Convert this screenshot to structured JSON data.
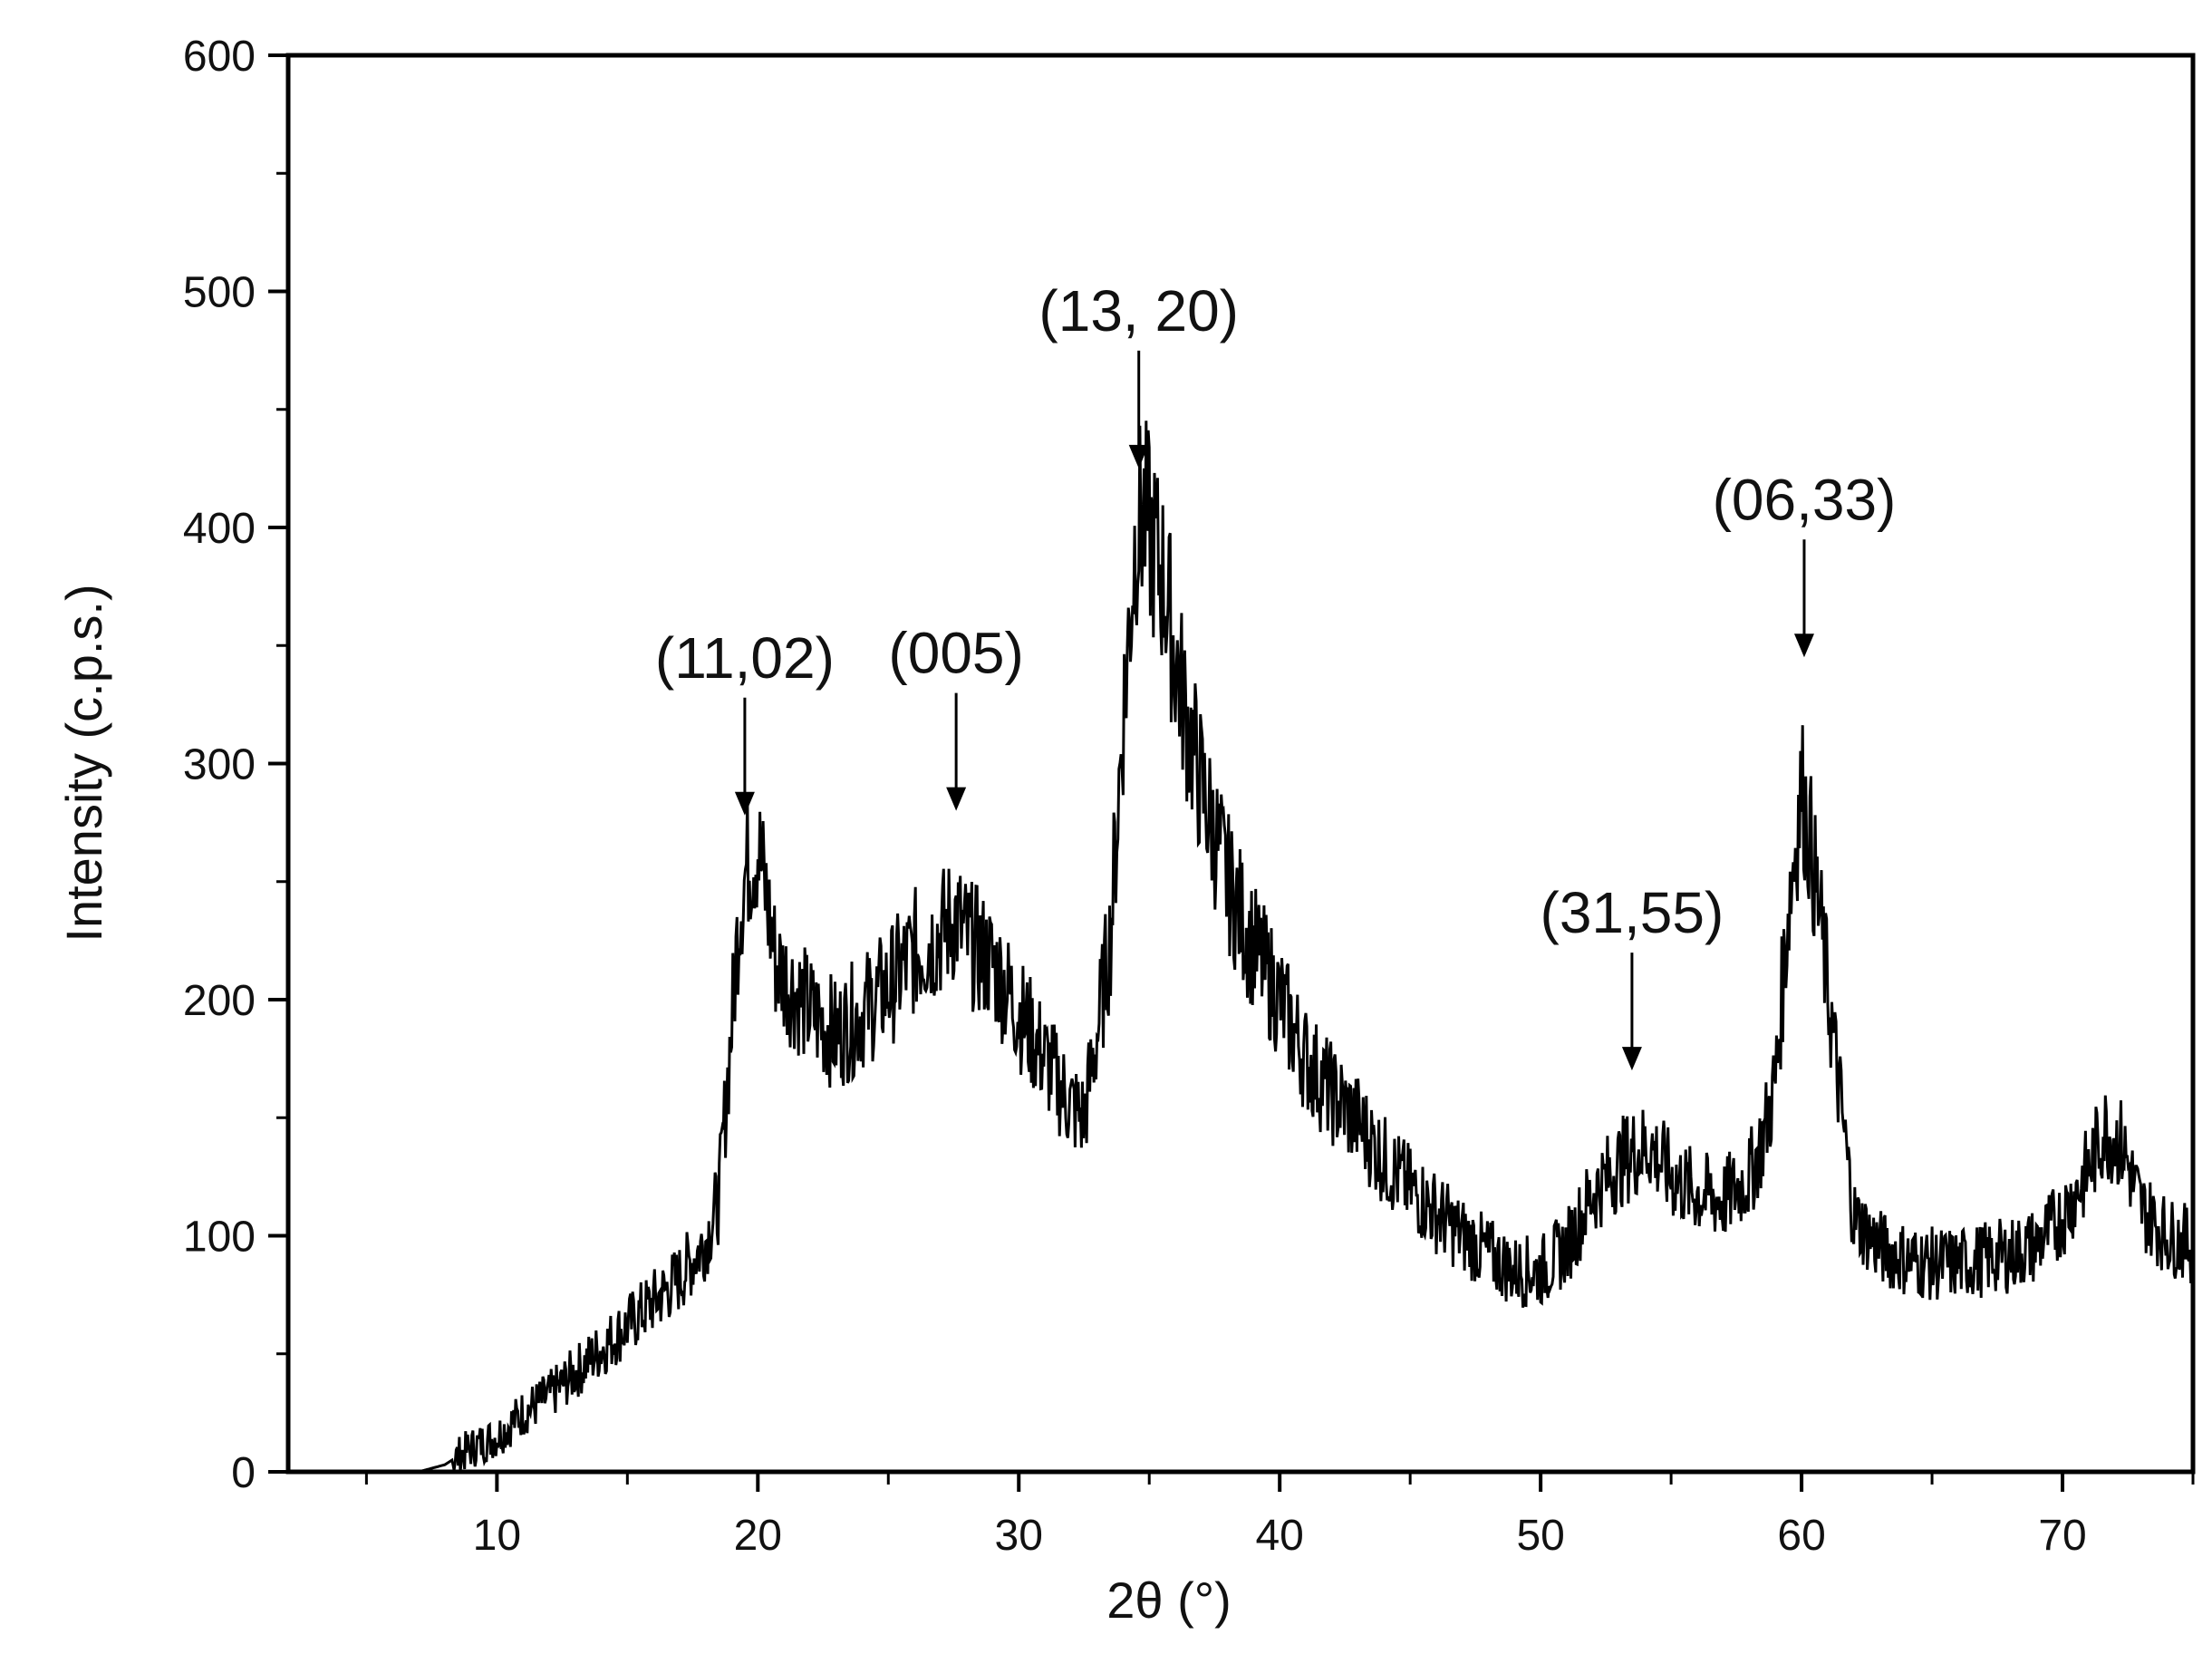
{
  "chart_data": {
    "type": "line",
    "title": "",
    "xlabel": "2θ (°)",
    "ylabel": "Intensity (c.p.s.)",
    "xlim": [
      2,
      75
    ],
    "ylim": [
      0,
      600
    ],
    "x_ticks": [
      10,
      20,
      30,
      40,
      50,
      60,
      70
    ],
    "y_ticks": [
      0,
      100,
      200,
      300,
      400,
      500,
      600
    ],
    "grid": false,
    "legend": "none",
    "line_color": "#000000",
    "series": [
      {
        "x": [
          5,
          7,
          8,
          9,
          10,
          11,
          12,
          13,
          14,
          15,
          16,
          17,
          18,
          18.5,
          19,
          19.3,
          19.6,
          19.8,
          20.0,
          20.3,
          20.7,
          21,
          22,
          23,
          24,
          25,
          26,
          27,
          27.6,
          28,
          29,
          30,
          31,
          32,
          32.5,
          33,
          33.5,
          34,
          34.5,
          34.8,
          35.2,
          35.6,
          36,
          36.5,
          37,
          38,
          39,
          40,
          41,
          42,
          43,
          44,
          45,
          46,
          47,
          48,
          49,
          50,
          51,
          52,
          53,
          53.5,
          54.2,
          55,
          56,
          57,
          58,
          58.5,
          59,
          59.5,
          60.0,
          60.3,
          60.8,
          61.3,
          62,
          63,
          64,
          65,
          66,
          67,
          68,
          69,
          70,
          71,
          71.6,
          72.3,
          73,
          74,
          75
        ],
        "y": [
          0,
          0,
          3,
          10,
          15,
          25,
          32,
          42,
          52,
          62,
          72,
          82,
          98,
          115,
          190,
          240,
          258,
          262,
          265,
          245,
          215,
          210,
          195,
          185,
          195,
          205,
          220,
          228,
          235,
          225,
          215,
          195,
          175,
          155,
          150,
          185,
          225,
          320,
          400,
          405,
          390,
          375,
          345,
          315,
          290,
          250,
          222,
          200,
          175,
          160,
          148,
          132,
          120,
          110,
          100,
          92,
          85,
          85,
          95,
          118,
          130,
          135,
          138,
          125,
          118,
          115,
          125,
          140,
          165,
          240,
          290,
          270,
          225,
          175,
          108,
          95,
          90,
          88,
          88,
          90,
          92,
          96,
          108,
          128,
          145,
          138,
          112,
          100,
          96
        ]
      }
    ],
    "annotations": [
      {
        "label": "(11,02)",
        "x": 19.5,
        "arrow_tip_y": 278
      },
      {
        "label": "(005)",
        "x": 27.6,
        "arrow_tip_y": 280
      },
      {
        "label": "(13, 20)",
        "x": 34.6,
        "arrow_tip_y": 425
      },
      {
        "label": "(31,55)",
        "x": 53.5,
        "arrow_tip_y": 170
      },
      {
        "label": "(06,33)",
        "x": 60.1,
        "arrow_tip_y": 345
      }
    ]
  }
}
